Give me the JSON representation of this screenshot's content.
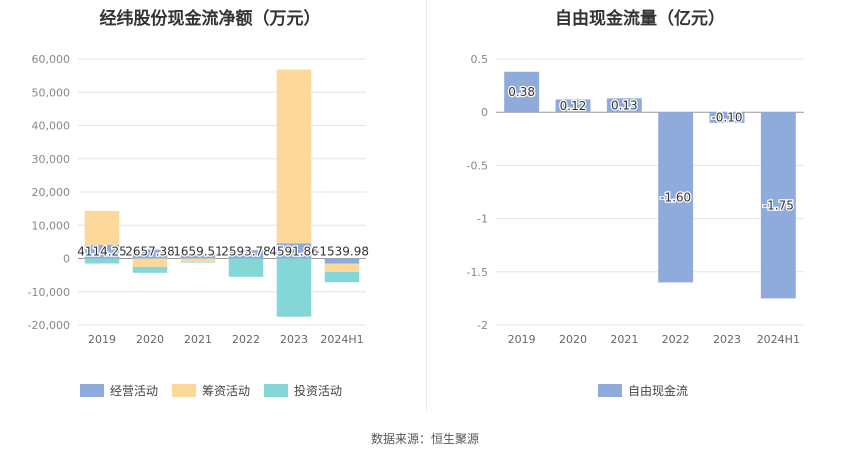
{
  "charts": {
    "left": {
      "title": "经纬股份现金流净额（万元）"
    },
    "right": {
      "title": "自由现金流量（亿元）"
    }
  },
  "source": "数据来源：恒生聚源",
  "chart_data": [
    {
      "type": "bar",
      "title": "经纬股份现金流净额（万元）",
      "stacked": true,
      "categories": [
        "2019",
        "2020",
        "2021",
        "2022",
        "2023",
        "2024H1"
      ],
      "ylim": [
        -20000,
        60000
      ],
      "yticks": [
        -20000,
        -10000,
        0,
        10000,
        20000,
        30000,
        40000,
        50000,
        60000
      ],
      "ytick_labels": [
        "-20,000",
        "-10,000",
        "0",
        "10,000",
        "20,000",
        "30,000",
        "40,000",
        "50,000",
        "60,000"
      ],
      "series": [
        {
          "name": "经营活动",
          "color": "#8eabdb",
          "values": [
            4114.25,
            2657.38,
            1659.51,
            2593.78,
            4591.86,
            -1539.98
          ]
        },
        {
          "name": "筹资活动",
          "color": "#fdd89b",
          "values": [
            10200,
            -2500,
            -1000,
            0,
            52200,
            -2500
          ]
        },
        {
          "name": "投资活动",
          "color": "#85d6d6",
          "values": [
            -1500,
            -1800,
            -200,
            -5500,
            -17500,
            -3100
          ]
        }
      ],
      "data_labels": [
        "4114.25",
        "2657.38",
        "1659.51",
        "2593.78",
        "4591.86",
        "-1539.98"
      ],
      "legend_position": "bottom",
      "grid": true
    },
    {
      "type": "bar",
      "title": "自由现金流量（亿元）",
      "categories": [
        "2019",
        "2020",
        "2021",
        "2022",
        "2023",
        "2024H1"
      ],
      "ylim": [
        -2,
        0.5
      ],
      "yticks": [
        -2,
        -1.5,
        -1,
        -0.5,
        0,
        0.5
      ],
      "ytick_labels": [
        "-2",
        "-1.5",
        "-1",
        "-0.5",
        "0",
        "0.5"
      ],
      "series": [
        {
          "name": "自由现金流",
          "color": "#8eabdb",
          "values": [
            0.38,
            0.12,
            0.13,
            -1.6,
            -0.1,
            -1.75
          ]
        }
      ],
      "data_labels": [
        "0.38",
        "0.12",
        "0.13",
        "-1.60",
        "-0.10",
        "-1.75"
      ],
      "legend_position": "bottom",
      "grid": true
    }
  ]
}
